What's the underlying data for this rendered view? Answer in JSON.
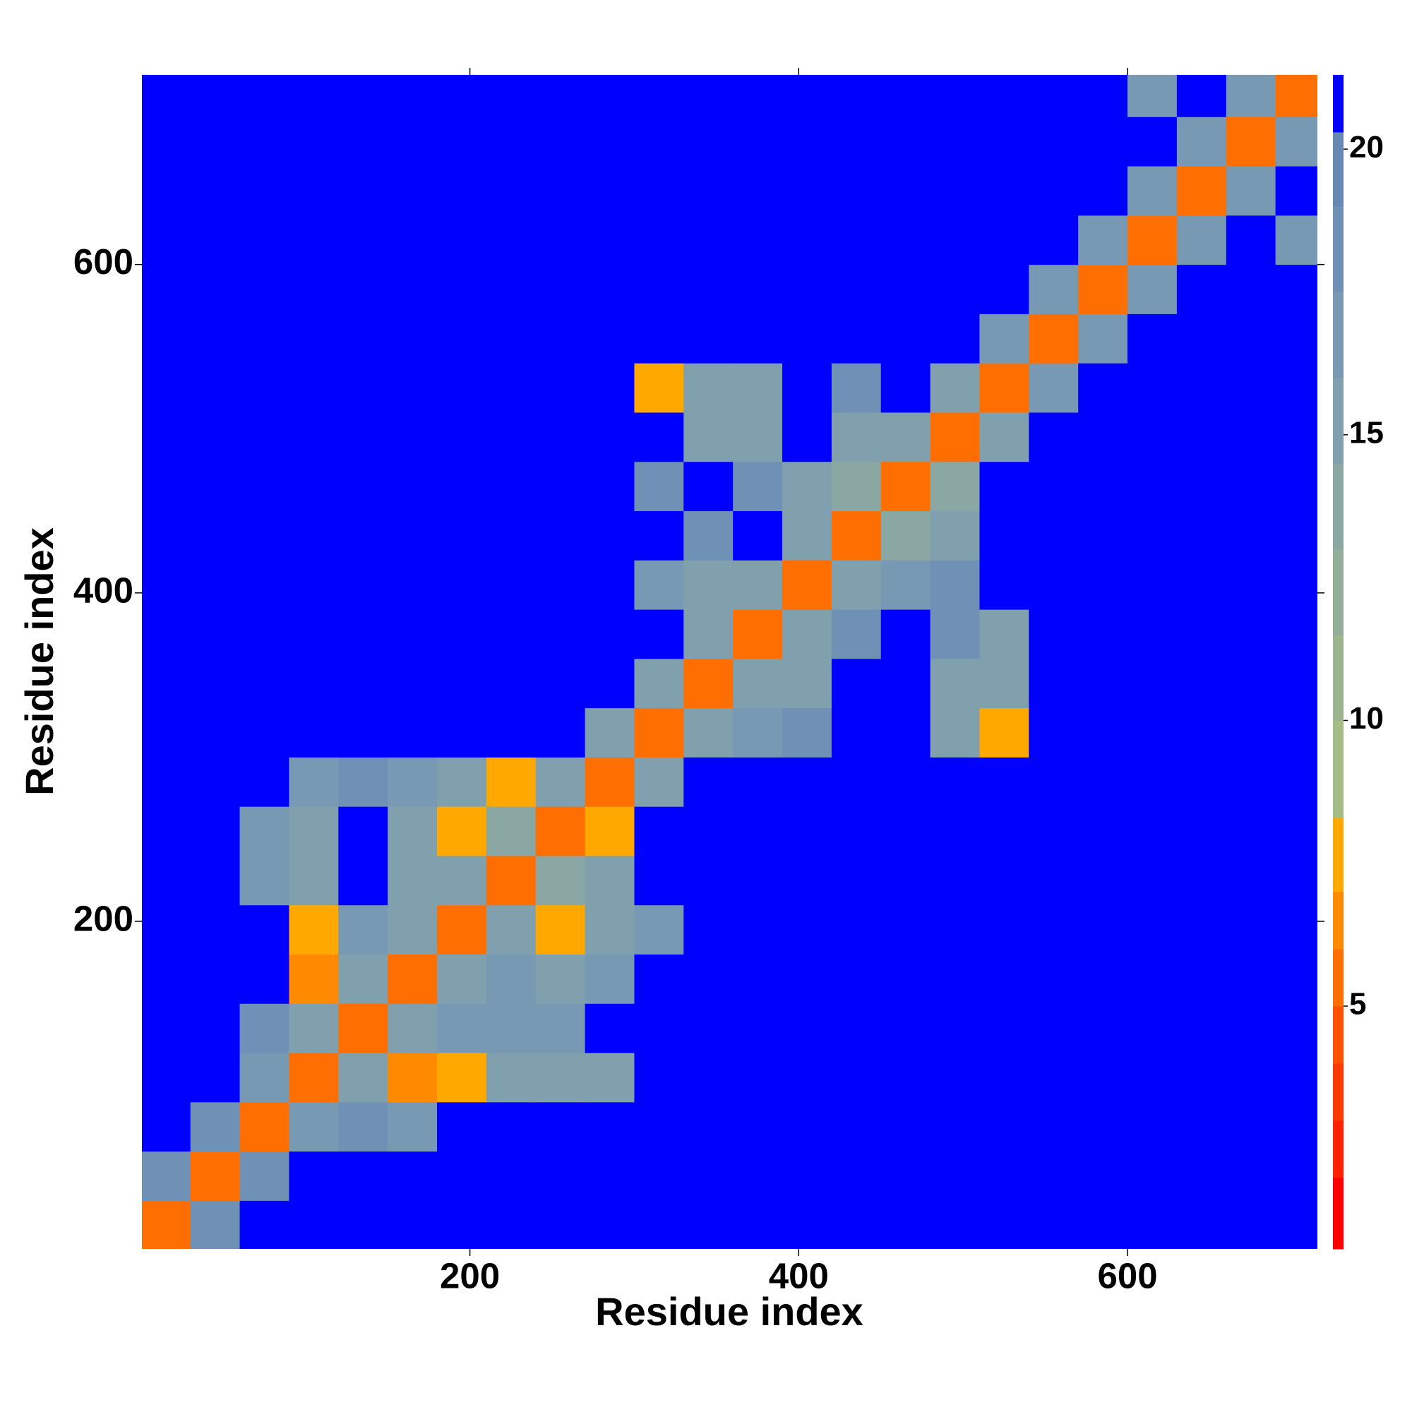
{
  "chart_data": {
    "type": "heatmap",
    "xlabel": "Residue index",
    "ylabel": "Residue index",
    "xlim": [
      0.5,
      715.5
    ],
    "ylim": [
      0.5,
      715.5
    ],
    "xticks": [
      200,
      400,
      600
    ],
    "yticks": [
      200,
      400,
      600
    ],
    "bins": [
      0,
      30,
      60,
      90,
      120,
      150,
      180,
      210,
      240,
      270,
      300,
      330,
      360,
      390,
      420,
      450,
      480,
      510,
      540,
      570,
      600,
      630,
      660,
      690,
      720
    ],
    "z": [
      [
        6,
        19,
        21,
        21,
        21,
        21,
        21,
        21,
        21,
        21,
        21,
        21,
        21,
        21,
        21,
        21,
        21,
        21,
        21,
        21,
        21,
        21,
        21,
        21
      ],
      [
        19,
        6,
        19,
        21,
        21,
        21,
        21,
        21,
        21,
        21,
        21,
        21,
        21,
        21,
        21,
        21,
        21,
        21,
        21,
        21,
        21,
        21,
        21,
        21
      ],
      [
        21,
        19,
        6,
        17,
        18,
        17,
        21,
        21,
        21,
        21,
        21,
        21,
        21,
        21,
        21,
        21,
        21,
        21,
        21,
        21,
        21,
        21,
        21,
        21
      ],
      [
        21,
        21,
        17,
        6,
        15,
        7,
        8,
        16,
        16,
        16,
        21,
        21,
        21,
        21,
        21,
        21,
        21,
        21,
        21,
        21,
        21,
        21,
        21,
        21
      ],
      [
        21,
        21,
        18,
        15,
        6,
        16,
        17,
        17,
        17,
        21,
        21,
        21,
        21,
        21,
        21,
        21,
        21,
        21,
        21,
        21,
        21,
        21,
        21,
        21
      ],
      [
        21,
        21,
        21,
        7,
        15,
        6,
        15,
        17,
        16,
        17,
        21,
        21,
        21,
        21,
        21,
        21,
        21,
        21,
        21,
        21,
        21,
        21,
        21,
        21
      ],
      [
        21,
        21,
        21,
        8,
        17,
        15,
        6,
        15,
        8,
        15,
        17,
        21,
        21,
        21,
        21,
        21,
        21,
        21,
        21,
        21,
        21,
        21,
        21,
        21
      ],
      [
        21,
        21,
        17,
        15,
        21,
        16,
        15,
        6,
        14,
        15,
        21,
        21,
        21,
        21,
        21,
        21,
        21,
        21,
        21,
        21,
        21,
        21,
        21,
        21
      ],
      [
        21,
        21,
        17,
        16,
        21,
        16,
        8,
        14,
        6,
        8,
        21,
        21,
        21,
        21,
        21,
        21,
        21,
        21,
        21,
        21,
        21,
        21,
        21,
        21
      ],
      [
        21,
        21,
        21,
        17,
        18,
        17,
        15,
        8,
        15,
        6,
        15,
        21,
        21,
        21,
        21,
        21,
        21,
        21,
        21,
        21,
        21,
        21,
        21,
        21
      ],
      [
        21,
        21,
        21,
        21,
        21,
        21,
        21,
        21,
        21,
        15,
        6,
        15,
        17,
        18,
        21,
        21,
        15,
        8,
        21,
        21,
        21,
        21,
        21,
        21
      ],
      [
        21,
        21,
        21,
        21,
        21,
        21,
        21,
        21,
        21,
        21,
        15,
        6,
        15,
        16,
        21,
        21,
        15,
        15,
        21,
        21,
        21,
        21,
        21,
        21
      ],
      [
        21,
        21,
        21,
        21,
        21,
        21,
        21,
        21,
        21,
        21,
        21,
        15,
        6,
        15,
        18,
        21,
        19,
        16,
        21,
        21,
        21,
        21,
        21,
        21
      ],
      [
        21,
        21,
        21,
        21,
        21,
        21,
        21,
        21,
        21,
        21,
        17,
        15,
        15,
        6,
        15,
        17,
        18,
        21,
        21,
        21,
        21,
        21,
        21,
        21
      ],
      [
        21,
        21,
        21,
        21,
        21,
        21,
        21,
        21,
        21,
        21,
        21,
        18,
        21,
        15,
        6,
        14,
        15,
        21,
        21,
        21,
        21,
        21,
        21,
        21
      ],
      [
        21,
        21,
        21,
        21,
        21,
        21,
        21,
        21,
        21,
        21,
        18,
        21,
        18,
        16,
        14,
        6,
        14,
        21,
        21,
        21,
        21,
        21,
        21,
        21
      ],
      [
        21,
        21,
        21,
        21,
        21,
        21,
        21,
        21,
        21,
        21,
        21,
        15,
        15,
        21,
        15,
        15,
        6,
        15,
        21,
        21,
        21,
        21,
        21,
        21
      ],
      [
        21,
        21,
        21,
        21,
        21,
        21,
        21,
        21,
        21,
        21,
        8,
        15,
        15,
        21,
        18,
        21,
        15,
        6,
        17,
        21,
        21,
        21,
        21,
        21
      ],
      [
        21,
        21,
        21,
        21,
        21,
        21,
        21,
        21,
        21,
        21,
        21,
        21,
        21,
        21,
        21,
        21,
        21,
        17,
        6,
        17,
        21,
        21,
        21,
        21
      ],
      [
        21,
        21,
        21,
        21,
        21,
        21,
        21,
        21,
        21,
        21,
        21,
        21,
        21,
        21,
        21,
        21,
        21,
        21,
        17,
        6,
        17,
        21,
        21,
        21
      ],
      [
        21,
        21,
        21,
        21,
        21,
        21,
        21,
        21,
        21,
        21,
        21,
        21,
        21,
        21,
        21,
        21,
        21,
        21,
        21,
        17,
        6,
        17,
        21,
        17
      ],
      [
        21,
        21,
        21,
        21,
        21,
        21,
        21,
        21,
        21,
        21,
        21,
        21,
        21,
        21,
        21,
        21,
        21,
        21,
        21,
        21,
        17,
        6,
        17,
        21
      ],
      [
        21,
        21,
        21,
        21,
        21,
        21,
        21,
        21,
        21,
        21,
        21,
        21,
        21,
        21,
        21,
        21,
        21,
        21,
        21,
        21,
        21,
        17,
        6,
        17
      ],
      [
        21,
        21,
        21,
        21,
        21,
        21,
        21,
        21,
        21,
        21,
        21,
        21,
        21,
        21,
        21,
        21,
        21,
        21,
        21,
        21,
        17,
        21,
        17,
        6
      ]
    ],
    "levels": [
      0.75,
      2,
      3,
      4,
      5,
      6,
      7,
      8.3,
      10,
      11.5,
      13,
      14.5,
      16,
      17.5,
      19,
      20.3,
      21.3
    ],
    "colors": [
      "#ff0000",
      "#ff2200",
      "#ff3a00",
      "#ff5200",
      "#ff6e00",
      "#ff8a00",
      "#ffa800",
      "#a5bd84",
      "#9db58f",
      "#94ae99",
      "#8aa7a3",
      "#81a0ad",
      "#7899b3",
      "#6f91b6",
      "#6688b5",
      "#0000ff"
    ],
    "cticks": [
      5,
      10,
      15,
      20
    ]
  }
}
